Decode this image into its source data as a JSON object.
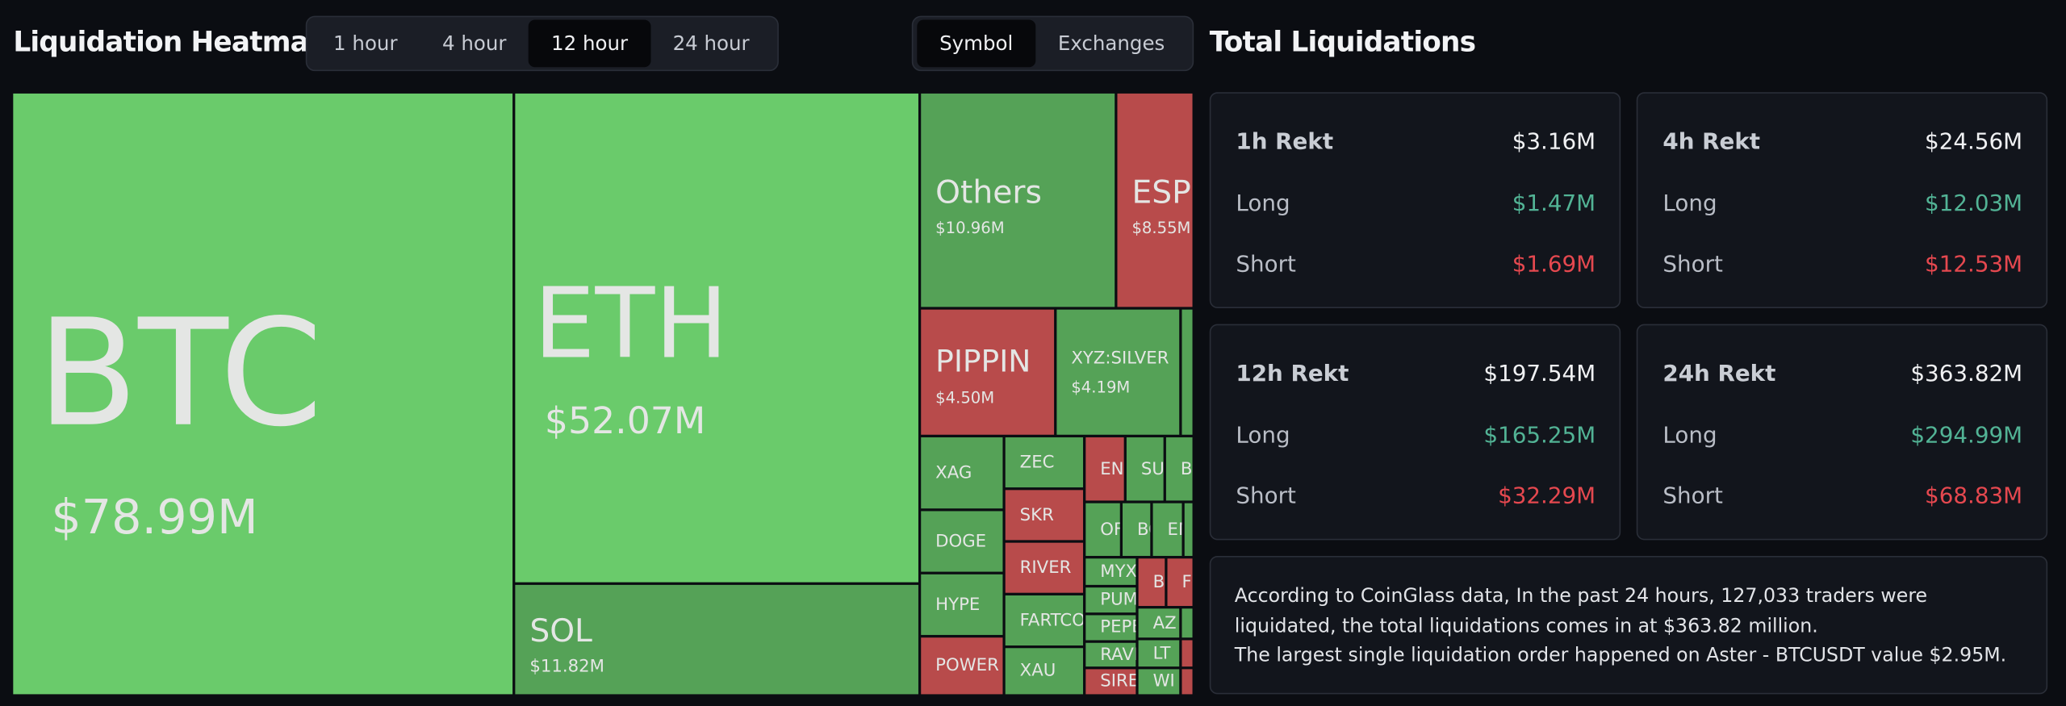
{
  "header": {
    "title": "Liquidation Heatmap",
    "time_tabs": [
      "1 hour",
      "4 hour",
      "12 hour",
      "24 hour"
    ],
    "view_tabs": [
      "Symbol",
      "Exchanges"
    ]
  },
  "heatmap": {
    "tiles": [
      {
        "label": "BTC",
        "value": 78.99,
        "value_label": "$78.99M",
        "color": "#6acb6b"
      },
      {
        "label": "ETH",
        "value": 52.07,
        "value_label": "$52.07M",
        "color": "#6acb6b"
      },
      {
        "label": "SOL",
        "value": 11.82,
        "value_label": "$11.82M",
        "color": "#55a257"
      },
      {
        "label": "Others",
        "value": 10.96,
        "value_label": "$10.96M",
        "color": "#55a257"
      },
      {
        "label": "ESP",
        "value": 8.55,
        "value_label": "$8.55M",
        "color": "#b84b4b"
      },
      {
        "label": "PIPPIN",
        "value": 4.5,
        "value_label": "$4.50M",
        "color": "#b84b4b"
      },
      {
        "label": "XYZ:SILVER",
        "value": 4.19,
        "value_label": "$4.19M",
        "color": "#55a257"
      },
      {
        "label": "XAG",
        "color": "#55a257"
      },
      {
        "label": "ZEC",
        "color": "#55a257"
      },
      {
        "label": "EN",
        "color": "#b84b4b"
      },
      {
        "label": "SU",
        "color": "#55a257"
      },
      {
        "label": "B",
        "color": "#55a257"
      },
      {
        "label": "DOGE",
        "color": "#55a257"
      },
      {
        "label": "SKR",
        "color": "#b84b4b"
      },
      {
        "label": "RIVER",
        "color": "#b84b4b"
      },
      {
        "label": "HYPE",
        "color": "#55a257"
      },
      {
        "label": "POWER",
        "color": "#b84b4b"
      },
      {
        "label": "FARTCO",
        "color": "#55a257"
      },
      {
        "label": "XAU",
        "color": "#55a257"
      },
      {
        "label": "OF",
        "color": "#55a257"
      },
      {
        "label": "BC",
        "color": "#55a257"
      },
      {
        "label": "EN",
        "color": "#55a257"
      },
      {
        "label": "MYX",
        "color": "#55a257"
      },
      {
        "label": "PUM",
        "color": "#55a257"
      },
      {
        "label": "PEPE",
        "color": "#55a257"
      },
      {
        "label": "RAVI",
        "color": "#55a257"
      },
      {
        "label": "SIRE",
        "color": "#b84b4b"
      },
      {
        "label": "B",
        "color": "#b84b4b"
      },
      {
        "label": "F",
        "color": "#b84b4b"
      },
      {
        "label": "AZ",
        "color": "#55a257"
      },
      {
        "label": "LT",
        "color": "#55a257"
      },
      {
        "label": "WI",
        "color": "#55a257"
      }
    ]
  },
  "summary": {
    "title": "Total Liquidations",
    "cards": [
      {
        "title": "1h Rekt",
        "total": "$3.16M",
        "rows": [
          {
            "label": "Long",
            "value": "$1.47M"
          },
          {
            "label": "Short",
            "value": "$1.69M"
          }
        ]
      },
      {
        "title": "4h Rekt",
        "total": "$24.56M",
        "rows": [
          {
            "label": "Long",
            "value": "$12.03M"
          },
          {
            "label": "Short",
            "value": "$12.53M"
          }
        ]
      },
      {
        "title": "12h Rekt",
        "total": "$197.54M",
        "rows": [
          {
            "label": "Long",
            "value": "$165.25M"
          },
          {
            "label": "Short",
            "value": "$32.29M"
          }
        ]
      },
      {
        "title": "24h Rekt",
        "total": "$363.82M",
        "rows": [
          {
            "label": "Long",
            "value": "$294.99M"
          },
          {
            "label": "Short",
            "value": "$68.83M"
          }
        ]
      }
    ]
  },
  "note": {
    "lines": [
      "According to CoinGlass data, In the past 24 hours, 127,033 traders were liquidated, the total liquidations comes in at $363.82 million.",
      "The largest single liquidation order happened on Aster - BTCUSDT value $2.95M."
    ]
  }
}
